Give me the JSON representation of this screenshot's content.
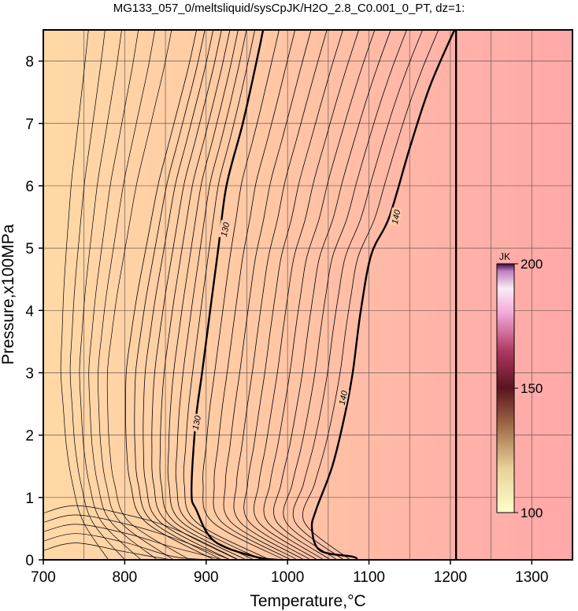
{
  "chart_data": {
    "type": "heatmap",
    "title": "MG133_057_0/meltsliquid/sysCpJK/H2O_2.8_C0.001_0_PT, dz=1:",
    "xlabel": "Temperature,°C",
    "ylabel": "Pressure,x100MPa",
    "xlim": [
      700,
      1350
    ],
    "ylim": [
      0,
      8.5
    ],
    "xticks": [
      700,
      800,
      900,
      1000,
      1100,
      1200,
      1300
    ],
    "yticks": [
      0,
      1,
      2,
      3,
      4,
      5,
      6,
      7,
      8
    ],
    "grid": true,
    "colorbar": {
      "unit": "JK",
      "min": 100,
      "max": 200,
      "ticks": [
        100,
        150,
        200
      ],
      "colors": [
        "#ffffcc",
        "#e8c99a",
        "#b07850",
        "#6a1a20",
        "#b03060",
        "#e070b0",
        "#f4c8e8",
        "#ffffff",
        "#3a0a40"
      ]
    },
    "field_colors": {
      "low": "#ffd9a6",
      "high": "#ffaaa8"
    },
    "contour_levels": [
      {
        "value": 130,
        "bold": true,
        "label": "130",
        "points": [
          [
            988,
            0
          ],
          [
            960,
            0.05
          ],
          [
            910,
            0.3
          ],
          [
            888,
            0.8
          ],
          [
            882,
            1.1
          ],
          [
            887,
            2.2
          ],
          [
            895,
            3
          ],
          [
            905,
            4
          ],
          [
            915,
            5
          ],
          [
            925,
            6
          ],
          [
            945,
            7
          ],
          [
            962,
            8
          ],
          [
            970,
            8.5
          ]
        ]
      },
      {
        "value": 140,
        "bold": true,
        "label": "140",
        "points": [
          [
            1085,
            0
          ],
          [
            1080,
            0.05
          ],
          [
            1040,
            0.15
          ],
          [
            1030,
            0.5
          ],
          [
            1035,
            0.8
          ],
          [
            1055,
            1.5
          ],
          [
            1070,
            2.3
          ],
          [
            1080,
            3
          ],
          [
            1090,
            4
          ],
          [
            1103,
            4.9
          ],
          [
            1125,
            5.5
          ],
          [
            1150,
            6.6
          ],
          [
            1175,
            7.6
          ],
          [
            1205,
            8.5
          ]
        ]
      },
      {
        "value": 150,
        "bold": true,
        "label": "",
        "points": [
          [
            1207,
            0
          ],
          [
            1207,
            8.5
          ]
        ]
      }
    ],
    "contour_labels": [
      {
        "text": "130",
        "x": 888,
        "y": 2.2
      },
      {
        "text": "130",
        "x": 923,
        "y": 5.3
      },
      {
        "text": "140",
        "x": 1068,
        "y": 2.6
      },
      {
        "text": "140",
        "x": 1133,
        "y": 5.5
      }
    ]
  }
}
